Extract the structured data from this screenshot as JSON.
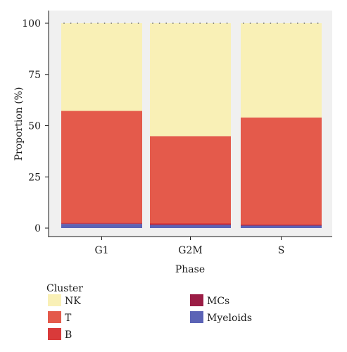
{
  "chart_data": {
    "type": "bar",
    "stacked": true,
    "xlabel": "Phase",
    "ylabel": "Proportion (%)",
    "categories": [
      "G1",
      "G2M",
      "S"
    ],
    "ylim": [
      0,
      100
    ],
    "yticks": [
      0,
      25,
      50,
      75,
      100
    ],
    "grid": false,
    "legend": {
      "title": "Cluster",
      "placement": "bottom",
      "entries": [
        "NK",
        "T",
        "B",
        "MCs",
        "Myeloids"
      ]
    },
    "series": [
      {
        "name": "Myeloids",
        "color": "#5b63b6",
        "values": [
          2,
          1.5,
          1.2
        ]
      },
      {
        "name": "MCs",
        "color": "#9b1d45",
        "values": [
          0.3,
          0.4,
          0.3
        ]
      },
      {
        "name": "B",
        "color": "#d93a3a",
        "values": [
          0.4,
          0.5,
          0.4
        ]
      },
      {
        "name": "T",
        "color": "#e45a4b",
        "values": [
          54.5,
          42.5,
          52.1
        ]
      },
      {
        "name": "NK",
        "color": "#f9f0b6",
        "values": [
          42.8,
          55.1,
          46.0
        ]
      }
    ]
  }
}
